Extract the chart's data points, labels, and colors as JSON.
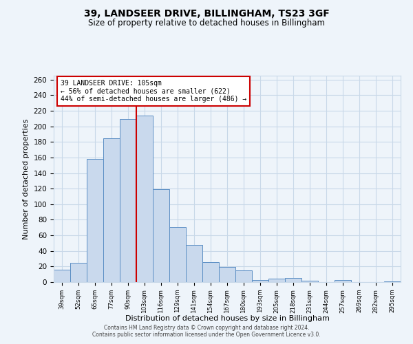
{
  "title": "39, LANDSEER DRIVE, BILLINGHAM, TS23 3GF",
  "subtitle": "Size of property relative to detached houses in Billingham",
  "xlabel": "Distribution of detached houses by size in Billingham",
  "ylabel": "Number of detached properties",
  "bar_labels": [
    "39sqm",
    "52sqm",
    "65sqm",
    "77sqm",
    "90sqm",
    "103sqm",
    "116sqm",
    "129sqm",
    "141sqm",
    "154sqm",
    "167sqm",
    "180sqm",
    "193sqm",
    "205sqm",
    "218sqm",
    "231sqm",
    "244sqm",
    "257sqm",
    "269sqm",
    "282sqm",
    "295sqm"
  ],
  "bar_heights": [
    16,
    25,
    158,
    185,
    209,
    214,
    119,
    71,
    48,
    26,
    19,
    15,
    3,
    4,
    5,
    2,
    0,
    3,
    0,
    0,
    1
  ],
  "bar_color": "#c9d9ed",
  "bar_edge_color": "#5b8ec4",
  "vline_x": 5.0,
  "vline_color": "#cc0000",
  "annotation_title": "39 LANDSEER DRIVE: 105sqm",
  "annotation_line1": "← 56% of detached houses are smaller (622)",
  "annotation_line2": "44% of semi-detached houses are larger (486) →",
  "annotation_box_color": "#ffffff",
  "annotation_box_edge": "#cc0000",
  "ylim": [
    0,
    265
  ],
  "yticks": [
    0,
    20,
    40,
    60,
    80,
    100,
    120,
    140,
    160,
    180,
    200,
    220,
    240,
    260
  ],
  "grid_color": "#c8d8e8",
  "background_color": "#eef4fa",
  "footer1": "Contains HM Land Registry data © Crown copyright and database right 2024.",
  "footer2": "Contains public sector information licensed under the Open Government Licence v3.0."
}
